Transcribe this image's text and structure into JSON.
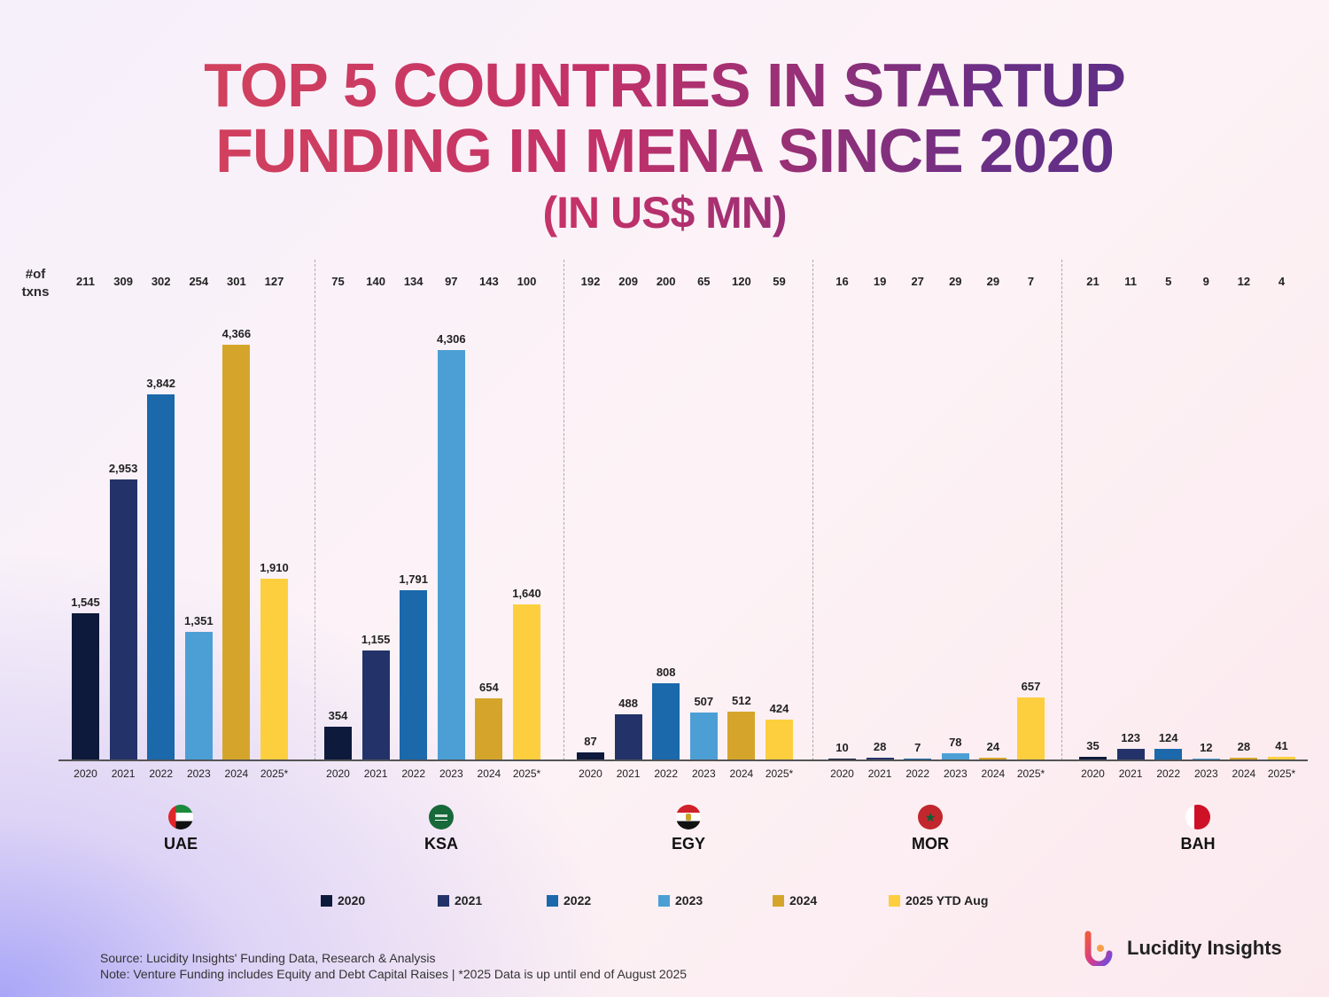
{
  "title": {
    "line1": "TOP 5 COUNTRIES IN STARTUP",
    "line2": "FUNDING IN MENA SINCE 2020",
    "line3": "(IN US$ MN)"
  },
  "txns_label": {
    "line1": "#of",
    "line2": "txns"
  },
  "chart_data": {
    "type": "bar",
    "title": "Top 5 Countries in Startup Funding in MENA since 2020 (in US$ Mn)",
    "ylabel": "US$ Mn",
    "ylim": [
      0,
      4366
    ],
    "categories": [
      "2020",
      "2021",
      "2022",
      "2023",
      "2024",
      "2025*"
    ],
    "groups": [
      {
        "name": "UAE",
        "values": [
          1545,
          2953,
          3842,
          1351,
          4366,
          1910
        ],
        "value_labels": [
          "1,545",
          "2,953",
          "3,842",
          "1,351",
          "4,366",
          "1,910"
        ],
        "txns": [
          "211",
          "309",
          "302",
          "254",
          "301",
          "127"
        ]
      },
      {
        "name": "KSA",
        "values": [
          354,
          1155,
          1791,
          4306,
          654,
          1640
        ],
        "value_labels": [
          "354",
          "1,155",
          "1,791",
          "4,306",
          "654",
          "1,640"
        ],
        "txns": [
          "75",
          "140",
          "134",
          "97",
          "143",
          "100"
        ]
      },
      {
        "name": "EGY",
        "values": [
          87,
          488,
          808,
          507,
          512,
          424
        ],
        "value_labels": [
          "87",
          "488",
          "808",
          "507",
          "512",
          "424"
        ],
        "txns": [
          "192",
          "209",
          "200",
          "65",
          "120",
          "59"
        ]
      },
      {
        "name": "MOR",
        "values": [
          10,
          28,
          7,
          78,
          24,
          657
        ],
        "value_labels": [
          "10",
          "28",
          "7",
          "78",
          "24",
          "657"
        ],
        "txns": [
          "16",
          "19",
          "27",
          "29",
          "29",
          "7"
        ]
      },
      {
        "name": "BAH",
        "values": [
          35,
          123,
          124,
          12,
          28,
          41
        ],
        "value_labels": [
          "35",
          "123",
          "124",
          "12",
          "28",
          "41"
        ],
        "txns": [
          "21",
          "11",
          "5",
          "9",
          "12",
          "4"
        ]
      }
    ],
    "legend": [
      "2020",
      "2021",
      "2022",
      "2023",
      "2024",
      "2025 YTD Aug"
    ],
    "colors": [
      "#0e1a3b",
      "#233369",
      "#1b68ab",
      "#4c9fd5",
      "#d5a52b",
      "#fdcf3f"
    ]
  },
  "footer": {
    "source": "Source: Lucidity Insights' Funding Data, Research & Analysis",
    "note": "Note: Venture Funding includes Equity and Debt Capital Raises | *2025 Data is up until end of August 2025"
  },
  "brand": "Lucidity Insights"
}
